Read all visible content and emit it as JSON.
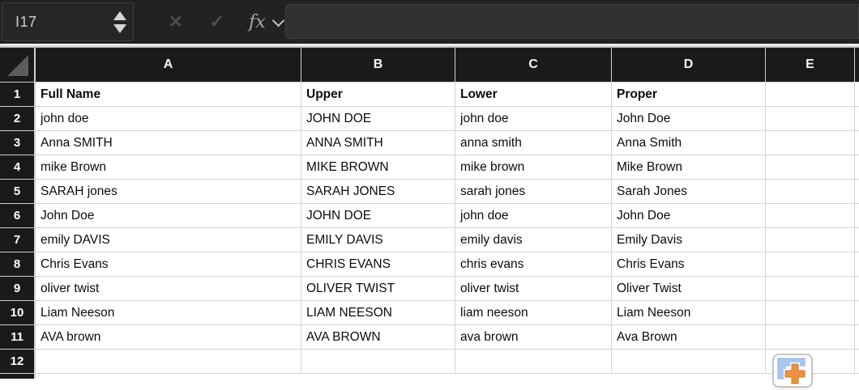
{
  "formula_bar": {
    "cell_reference": "I17",
    "formula_value": "",
    "fx_label": "fx",
    "cancel_glyph": "✕",
    "confirm_glyph": "✓"
  },
  "sheet": {
    "column_headers": [
      "A",
      "B",
      "C",
      "D",
      "E"
    ],
    "row_numbers": [
      "1",
      "2",
      "3",
      "4",
      "5",
      "6",
      "7",
      "8",
      "9",
      "10",
      "11",
      "12"
    ],
    "cells": [
      [
        "Full Name",
        "Upper",
        "Lower",
        "Proper",
        ""
      ],
      [
        "john doe",
        "JOHN DOE",
        "john doe",
        "John Doe",
        ""
      ],
      [
        "Anna SMITH",
        "ANNA SMITH",
        "anna smith",
        "Anna Smith",
        ""
      ],
      [
        "mike Brown",
        "MIKE BROWN",
        "mike brown",
        "Mike Brown",
        ""
      ],
      [
        "SARAH jones",
        "SARAH JONES",
        "sarah jones",
        "Sarah Jones",
        ""
      ],
      [
        "John Doe",
        "JOHN DOE",
        "john doe",
        "John Doe",
        ""
      ],
      [
        "emily DAVIS",
        "EMILY DAVIS",
        "emily davis",
        "Emily Davis",
        ""
      ],
      [
        "Chris Evans",
        "CHRIS EVANS",
        "chris evans",
        "Chris Evans",
        ""
      ],
      [
        "oliver twist",
        "OLIVER TWIST",
        "oliver twist",
        "Oliver Twist",
        ""
      ],
      [
        "Liam Neeson",
        "LIAM NEESON",
        "liam neeson",
        "Liam Neeson",
        ""
      ],
      [
        "AVA brown",
        "AVA BROWN",
        "ava brown",
        "Ava Brown",
        ""
      ],
      [
        "",
        "",
        "",
        "",
        ""
      ]
    ]
  },
  "colors": {
    "toolbar_bg": "#222222",
    "header_bg": "#1a1a1a",
    "gridline": "#d4d4d4",
    "insert_corner_blue": "#a9c6ef",
    "insert_plus_orange": "#ec9140"
  }
}
